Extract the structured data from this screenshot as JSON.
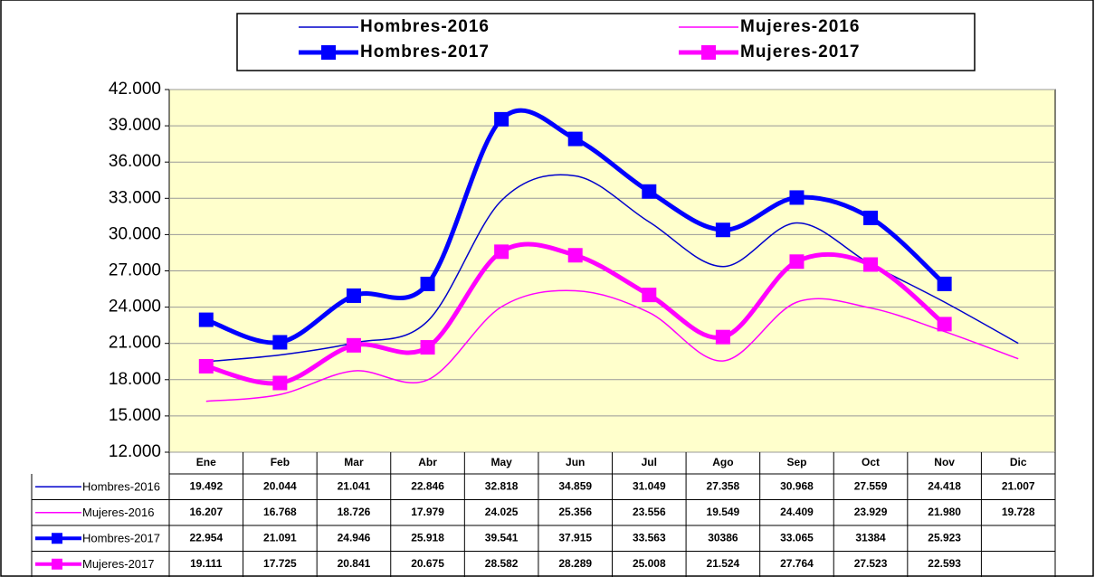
{
  "chart_data": {
    "type": "line",
    "categories": [
      "Ene",
      "Feb",
      "Mar",
      "Abr",
      "May",
      "Jun",
      "Jul",
      "Ago",
      "Sep",
      "Oct",
      "Nov",
      "Dic"
    ],
    "ylim": [
      12000,
      42000
    ],
    "yticks": [
      {
        "value": 12000,
        "label": "12.000"
      },
      {
        "value": 15000,
        "label": "15.000"
      },
      {
        "value": 18000,
        "label": "18.000"
      },
      {
        "value": 21000,
        "label": "21.000"
      },
      {
        "value": 24000,
        "label": "24.000"
      },
      {
        "value": 27000,
        "label": "27.000"
      },
      {
        "value": 30000,
        "label": "30.000"
      },
      {
        "value": 33000,
        "label": "33.000"
      },
      {
        "value": 36000,
        "label": "36.000"
      },
      {
        "value": 39000,
        "label": "39.000"
      },
      {
        "value": 42000,
        "label": "42.000"
      }
    ],
    "grid": true,
    "background": "#ffffcc",
    "series": [
      {
        "name": "Hombres-2016",
        "color": "#0000cc",
        "marker": false,
        "values": [
          19492,
          20044,
          21041,
          22846,
          32818,
          34859,
          31049,
          27358,
          30968,
          27559,
          24418,
          21007
        ],
        "value_labels": [
          "19.492",
          "20.044",
          "21.041",
          "22.846",
          "32.818",
          "34.859",
          "31.049",
          "27.358",
          "30.968",
          "27.559",
          "24.418",
          "21.007"
        ]
      },
      {
        "name": "Mujeres-2016",
        "color": "#ff00ff",
        "marker": false,
        "values": [
          16207,
          16768,
          18726,
          17979,
          24025,
          25356,
          23556,
          19549,
          24409,
          23929,
          21980,
          19728
        ],
        "value_labels": [
          "16.207",
          "16.768",
          "18.726",
          "17.979",
          "24.025",
          "25.356",
          "23.556",
          "19.549",
          "24.409",
          "23.929",
          "21.980",
          "19.728"
        ]
      },
      {
        "name": "Hombres-2017",
        "color": "#0000ff",
        "marker": true,
        "values": [
          22954,
          21091,
          24946,
          25918,
          39541,
          37915,
          33563,
          30386,
          33065,
          31384,
          25923,
          null
        ],
        "value_labels": [
          "22.954",
          "21.091",
          "24.946",
          "25.918",
          "39.541",
          "37.915",
          "33.563",
          "30386",
          "33.065",
          "31384",
          "25.923",
          null
        ]
      },
      {
        "name": "Mujeres-2017",
        "color": "#ff00ff",
        "marker": true,
        "values": [
          19111,
          17725,
          20841,
          20675,
          28582,
          28289,
          25008,
          21524,
          27764,
          27523,
          22593,
          null
        ],
        "value_labels": [
          "19.111",
          "17.725",
          "20.841",
          "20.675",
          "28.582",
          "28.289",
          "25.008",
          "21.524",
          "27.764",
          "27.523",
          "22.593",
          null
        ]
      }
    ]
  }
}
